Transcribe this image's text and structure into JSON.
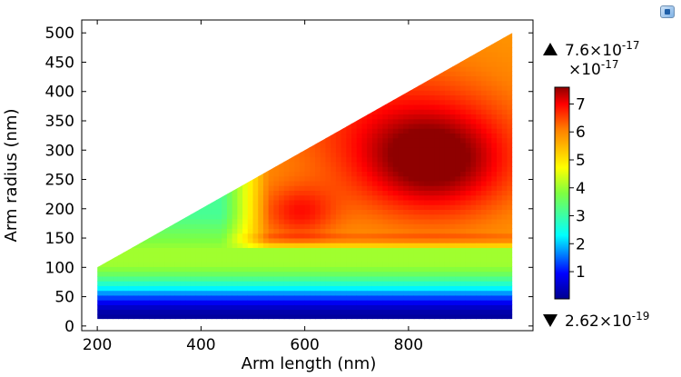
{
  "chart_data": {
    "type": "heatmap",
    "title": "",
    "xlabel": "Arm length (nm)",
    "ylabel": "Arm radius (nm)",
    "xlim": [
      170,
      1040
    ],
    "ylim": [
      -8,
      522
    ],
    "xticks": [
      200,
      400,
      600,
      800
    ],
    "yticks": [
      0,
      50,
      100,
      150,
      200,
      250,
      300,
      350,
      400,
      450,
      500
    ],
    "domain": {
      "shape": "triangle",
      "vertices": [
        [
          200,
          12
        ],
        [
          1000,
          12
        ],
        [
          1000,
          500
        ],
        [
          200,
          100
        ]
      ]
    },
    "colormap": "rainbow",
    "colorbar": {
      "multiplier": "×10^-17",
      "ticks": [
        1,
        2,
        3,
        4,
        5,
        6,
        7
      ],
      "min": 0.0262,
      "max": 7.6
    },
    "range_max": "7.6×10^-17",
    "range_min": "2.62×10^-19",
    "grid": false
  },
  "ui": {
    "corner_icon": "image-export-icon"
  }
}
